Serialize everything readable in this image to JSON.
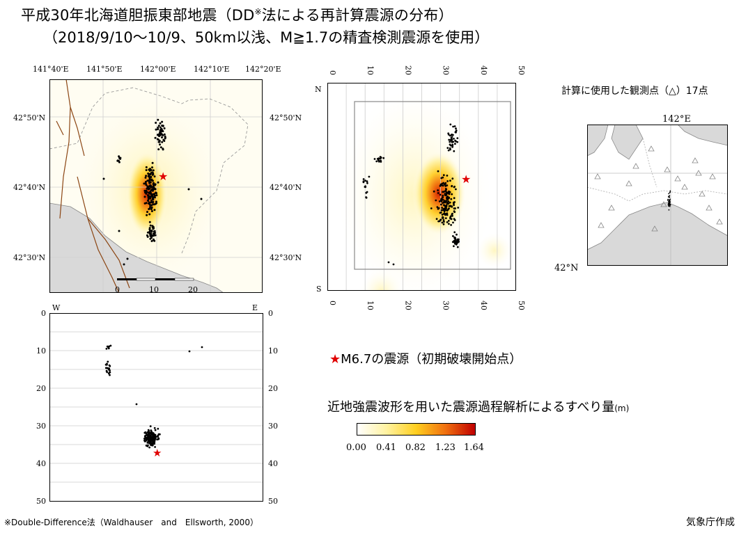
{
  "title_line1": "平成30年北海道胆振東部地震（DD",
  "title_mark": "※",
  "title_line1_end": "法による再計算震源の分布）",
  "title_line2": "（2018/9/10〜10/9、50km以浅、M≧1.7の精査検測震源を使用）",
  "map_panel": {
    "top_lon_labels": [
      "141°40'E",
      "141°50'E",
      "142°00'E",
      "142°10'E",
      "142°20'E"
    ],
    "lat_labels": [
      "42°50'N",
      "42°40'N",
      "42°30'N"
    ],
    "scale_labels": [
      "0",
      "10",
      "20"
    ]
  },
  "ns_panel": {
    "tick_labels": [
      "0",
      "10",
      "20",
      "30",
      "40",
      "50"
    ],
    "north_label": "N",
    "south_label": "S"
  },
  "ew_panel": {
    "west_label": "W",
    "east_label": "E",
    "depth_labels": [
      "0",
      "10",
      "20",
      "30",
      "40",
      "50"
    ]
  },
  "station_map": {
    "title": "計算に使用した観測点（△）17点",
    "lon_label": "142°E",
    "lat_label": "42°N"
  },
  "mainshock_legend": {
    "star": "★",
    "text": "M6.7の震源（初期破壊開始点）"
  },
  "slip_colorbar": {
    "title": "近地強震波形を用いた震源過程解析によるすべり量",
    "unit": "(m)",
    "tick_labels": [
      "0.00",
      "0.41",
      "0.82",
      "1.23",
      "1.64"
    ],
    "colors": [
      "#ffffff",
      "#fff2a0",
      "#ffcf20",
      "#f07010",
      "#c00000"
    ]
  },
  "footnote": "※Double-Difference法（Waldhauser　and　Ellsworth, 2000）",
  "credit": "気象庁作成",
  "colors": {
    "mainshock": "#e00000",
    "land": "#d9d9d9",
    "fault": "#8b4513"
  }
}
